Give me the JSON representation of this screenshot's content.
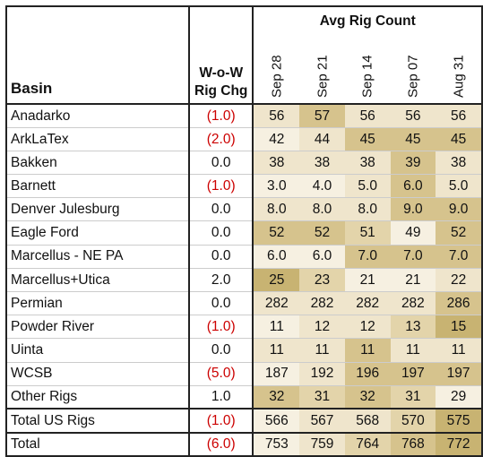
{
  "header": {
    "basin": "Basin",
    "chg_line1": "W-o-W",
    "chg_line2": "Rig Chg",
    "avg_title": "Avg Rig Count",
    "weeks": [
      "Sep 28",
      "Sep 21",
      "Sep 14",
      "Sep 07",
      "Aug 31"
    ]
  },
  "colors": {
    "negative": "#cc0000",
    "shade_scale": [
      "#f6f0e1",
      "#efe5cc",
      "#e3d4aa",
      "#d6c38d",
      "#c8b372"
    ]
  },
  "rows": [
    {
      "basin": "Anadarko",
      "chg": "(1.0)",
      "neg": true,
      "vals": [
        "56",
        "57",
        "56",
        "56",
        "56"
      ],
      "shade": [
        1,
        3,
        1,
        1,
        1
      ]
    },
    {
      "basin": "ArkLaTex",
      "chg": "(2.0)",
      "neg": true,
      "vals": [
        "42",
        "44",
        "45",
        "45",
        "45"
      ],
      "shade": [
        0,
        1,
        3,
        3,
        3
      ]
    },
    {
      "basin": "Bakken",
      "chg": "0.0",
      "neg": false,
      "vals": [
        "38",
        "38",
        "38",
        "39",
        "38"
      ],
      "shade": [
        1,
        1,
        1,
        3,
        1
      ]
    },
    {
      "basin": "Barnett",
      "chg": "(1.0)",
      "neg": true,
      "vals": [
        "3.0",
        "4.0",
        "5.0",
        "6.0",
        "5.0"
      ],
      "shade": [
        0,
        0,
        1,
        3,
        1
      ]
    },
    {
      "basin": "Denver Julesburg",
      "chg": "0.0",
      "neg": false,
      "vals": [
        "8.0",
        "8.0",
        "8.0",
        "9.0",
        "9.0"
      ],
      "shade": [
        1,
        1,
        1,
        3,
        3
      ]
    },
    {
      "basin": "Eagle Ford",
      "chg": "0.0",
      "neg": false,
      "vals": [
        "52",
        "52",
        "51",
        "49",
        "52"
      ],
      "shade": [
        3,
        3,
        2,
        0,
        3
      ]
    },
    {
      "basin": "Marcellus - NE PA",
      "chg": "0.0",
      "neg": false,
      "vals": [
        "6.0",
        "6.0",
        "7.0",
        "7.0",
        "7.0"
      ],
      "shade": [
        0,
        0,
        3,
        3,
        3
      ]
    },
    {
      "basin": "Marcellus+Utica",
      "chg": "2.0",
      "neg": false,
      "vals": [
        "25",
        "23",
        "21",
        "21",
        "22"
      ],
      "shade": [
        4,
        2,
        0,
        0,
        1
      ]
    },
    {
      "basin": "Permian",
      "chg": "0.0",
      "neg": false,
      "vals": [
        "282",
        "282",
        "282",
        "282",
        "286"
      ],
      "shade": [
        1,
        1,
        1,
        1,
        3
      ]
    },
    {
      "basin": "Powder River",
      "chg": "(1.0)",
      "neg": true,
      "vals": [
        "11",
        "12",
        "12",
        "13",
        "15"
      ],
      "shade": [
        0,
        1,
        1,
        2,
        4
      ]
    },
    {
      "basin": "Uinta",
      "chg": "0.0",
      "neg": false,
      "vals": [
        "11",
        "11",
        "11",
        "11",
        "11"
      ],
      "shade": [
        1,
        1,
        3,
        1,
        1
      ]
    },
    {
      "basin": "WCSB",
      "chg": "(5.0)",
      "neg": true,
      "vals": [
        "187",
        "192",
        "196",
        "197",
        "197"
      ],
      "shade": [
        0,
        1,
        3,
        3,
        3
      ]
    },
    {
      "basin": "Other Rigs",
      "chg": "1.0",
      "neg": false,
      "vals": [
        "32",
        "31",
        "32",
        "31",
        "29"
      ],
      "shade": [
        3,
        2,
        3,
        2,
        0
      ]
    }
  ],
  "totals": [
    {
      "basin": "Total US Rigs",
      "chg": "(1.0)",
      "neg": true,
      "vals": [
        "566",
        "567",
        "568",
        "570",
        "575"
      ],
      "shade": [
        0,
        1,
        1,
        2,
        4
      ]
    },
    {
      "basin": "Total",
      "chg": "(6.0)",
      "neg": true,
      "vals": [
        "753",
        "759",
        "764",
        "768",
        "772"
      ],
      "shade": [
        0,
        1,
        2,
        3,
        4
      ]
    }
  ]
}
